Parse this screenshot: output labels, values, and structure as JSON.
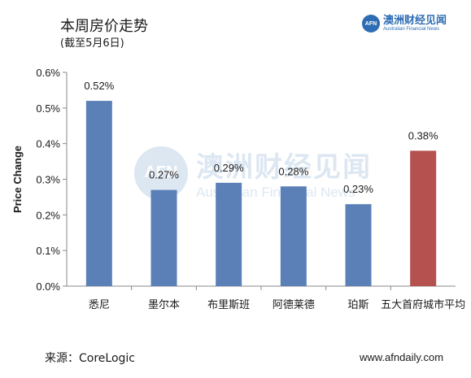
{
  "header": {
    "title": "本周房价走势",
    "subtitle": "(截至5月6日)"
  },
  "logo": {
    "mark": "AFN",
    "name_cn": "澳洲财经见闻",
    "name_en": "Australian Financial News"
  },
  "watermark": {
    "mark": "AFN",
    "name_cn": "澳洲财经见闻",
    "name_en": "Australian Financial News"
  },
  "footer": {
    "source": "来源：CoreLogic",
    "website": "www.afndaily.com"
  },
  "chart_data": {
    "type": "bar",
    "title": "",
    "xlabel": "",
    "ylabel": "Price Change",
    "ylim": [
      0,
      0.6
    ],
    "yticks": [
      "0.0%",
      "0.1%",
      "0.2%",
      "0.3%",
      "0.4%",
      "0.5%",
      "0.6%"
    ],
    "categories": [
      "悉尼",
      "墨尔本",
      "布里斯班",
      "阿德莱德",
      "珀斯",
      "五大首府城市平均"
    ],
    "values": [
      0.52,
      0.27,
      0.29,
      0.28,
      0.23,
      0.38
    ],
    "labels": [
      "0.52%",
      "0.27%",
      "0.29%",
      "0.28%",
      "0.23%",
      "0.38%"
    ],
    "colors": [
      "#5b80b8",
      "#5b80b8",
      "#5b80b8",
      "#5b80b8",
      "#5b80b8",
      "#b5524f"
    ],
    "grid": false,
    "legend": "none"
  }
}
